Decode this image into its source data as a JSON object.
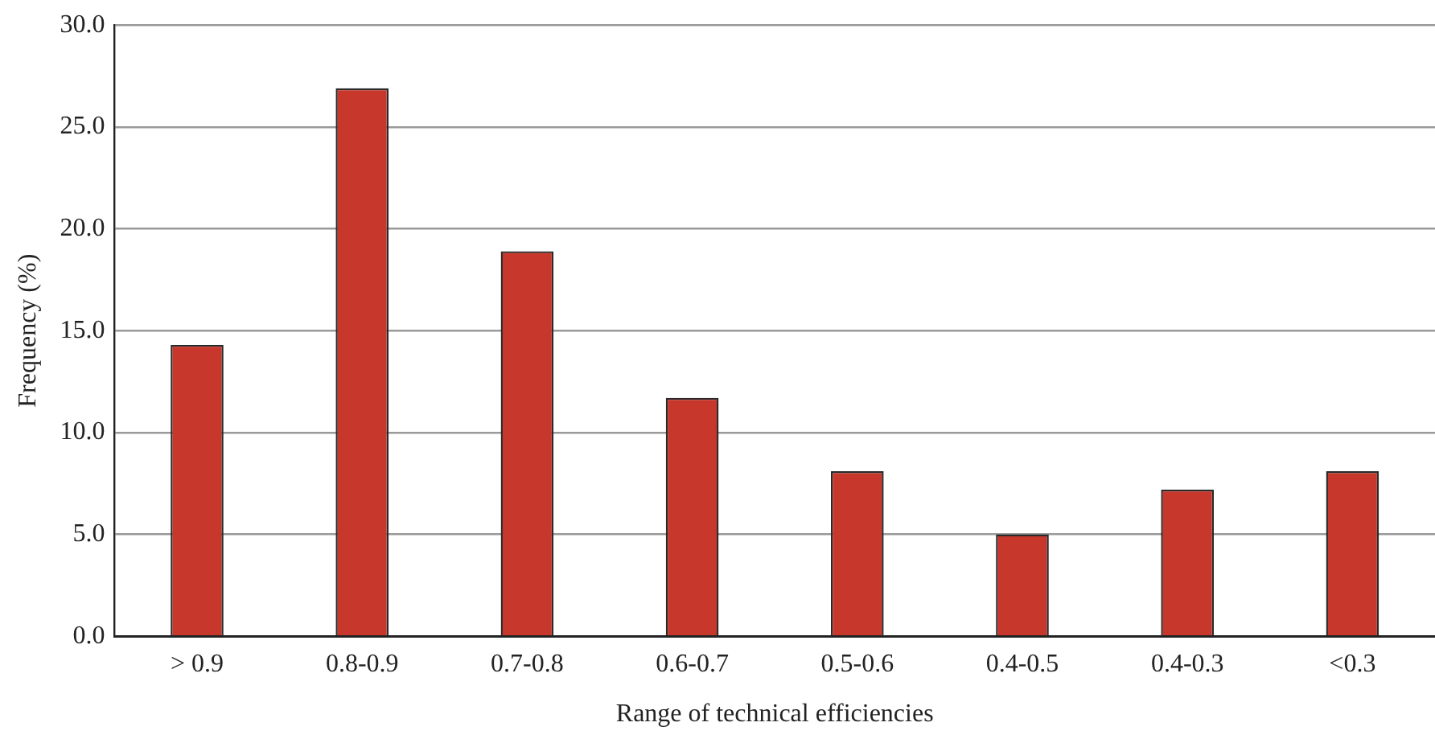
{
  "chart_data": {
    "type": "bar",
    "xlabel": "Range of technical efficiencies",
    "ylabel": "Frequency (%)",
    "categories": [
      "> 0.9",
      "0.8-0.9",
      "0.7-0.8",
      "0.6-0.7",
      "0.5-0.6",
      "0.4-0.5",
      "0.4-0.3",
      "<0.3"
    ],
    "values": [
      14.3,
      26.9,
      18.9,
      11.7,
      8.1,
      5.0,
      7.2,
      8.1
    ],
    "color": "#c8372b",
    "ylim": [
      0,
      30
    ],
    "yticks": [
      {
        "value": 0,
        "label": "0.0"
      },
      {
        "value": 5,
        "label": "5.0"
      },
      {
        "value": 10,
        "label": "10.0"
      },
      {
        "value": 15,
        "label": "15.0"
      },
      {
        "value": 20,
        "label": "20.0"
      },
      {
        "value": 25,
        "label": "25.0"
      },
      {
        "value": 30,
        "label": "30.0"
      }
    ],
    "grid": "y",
    "legend": false
  }
}
